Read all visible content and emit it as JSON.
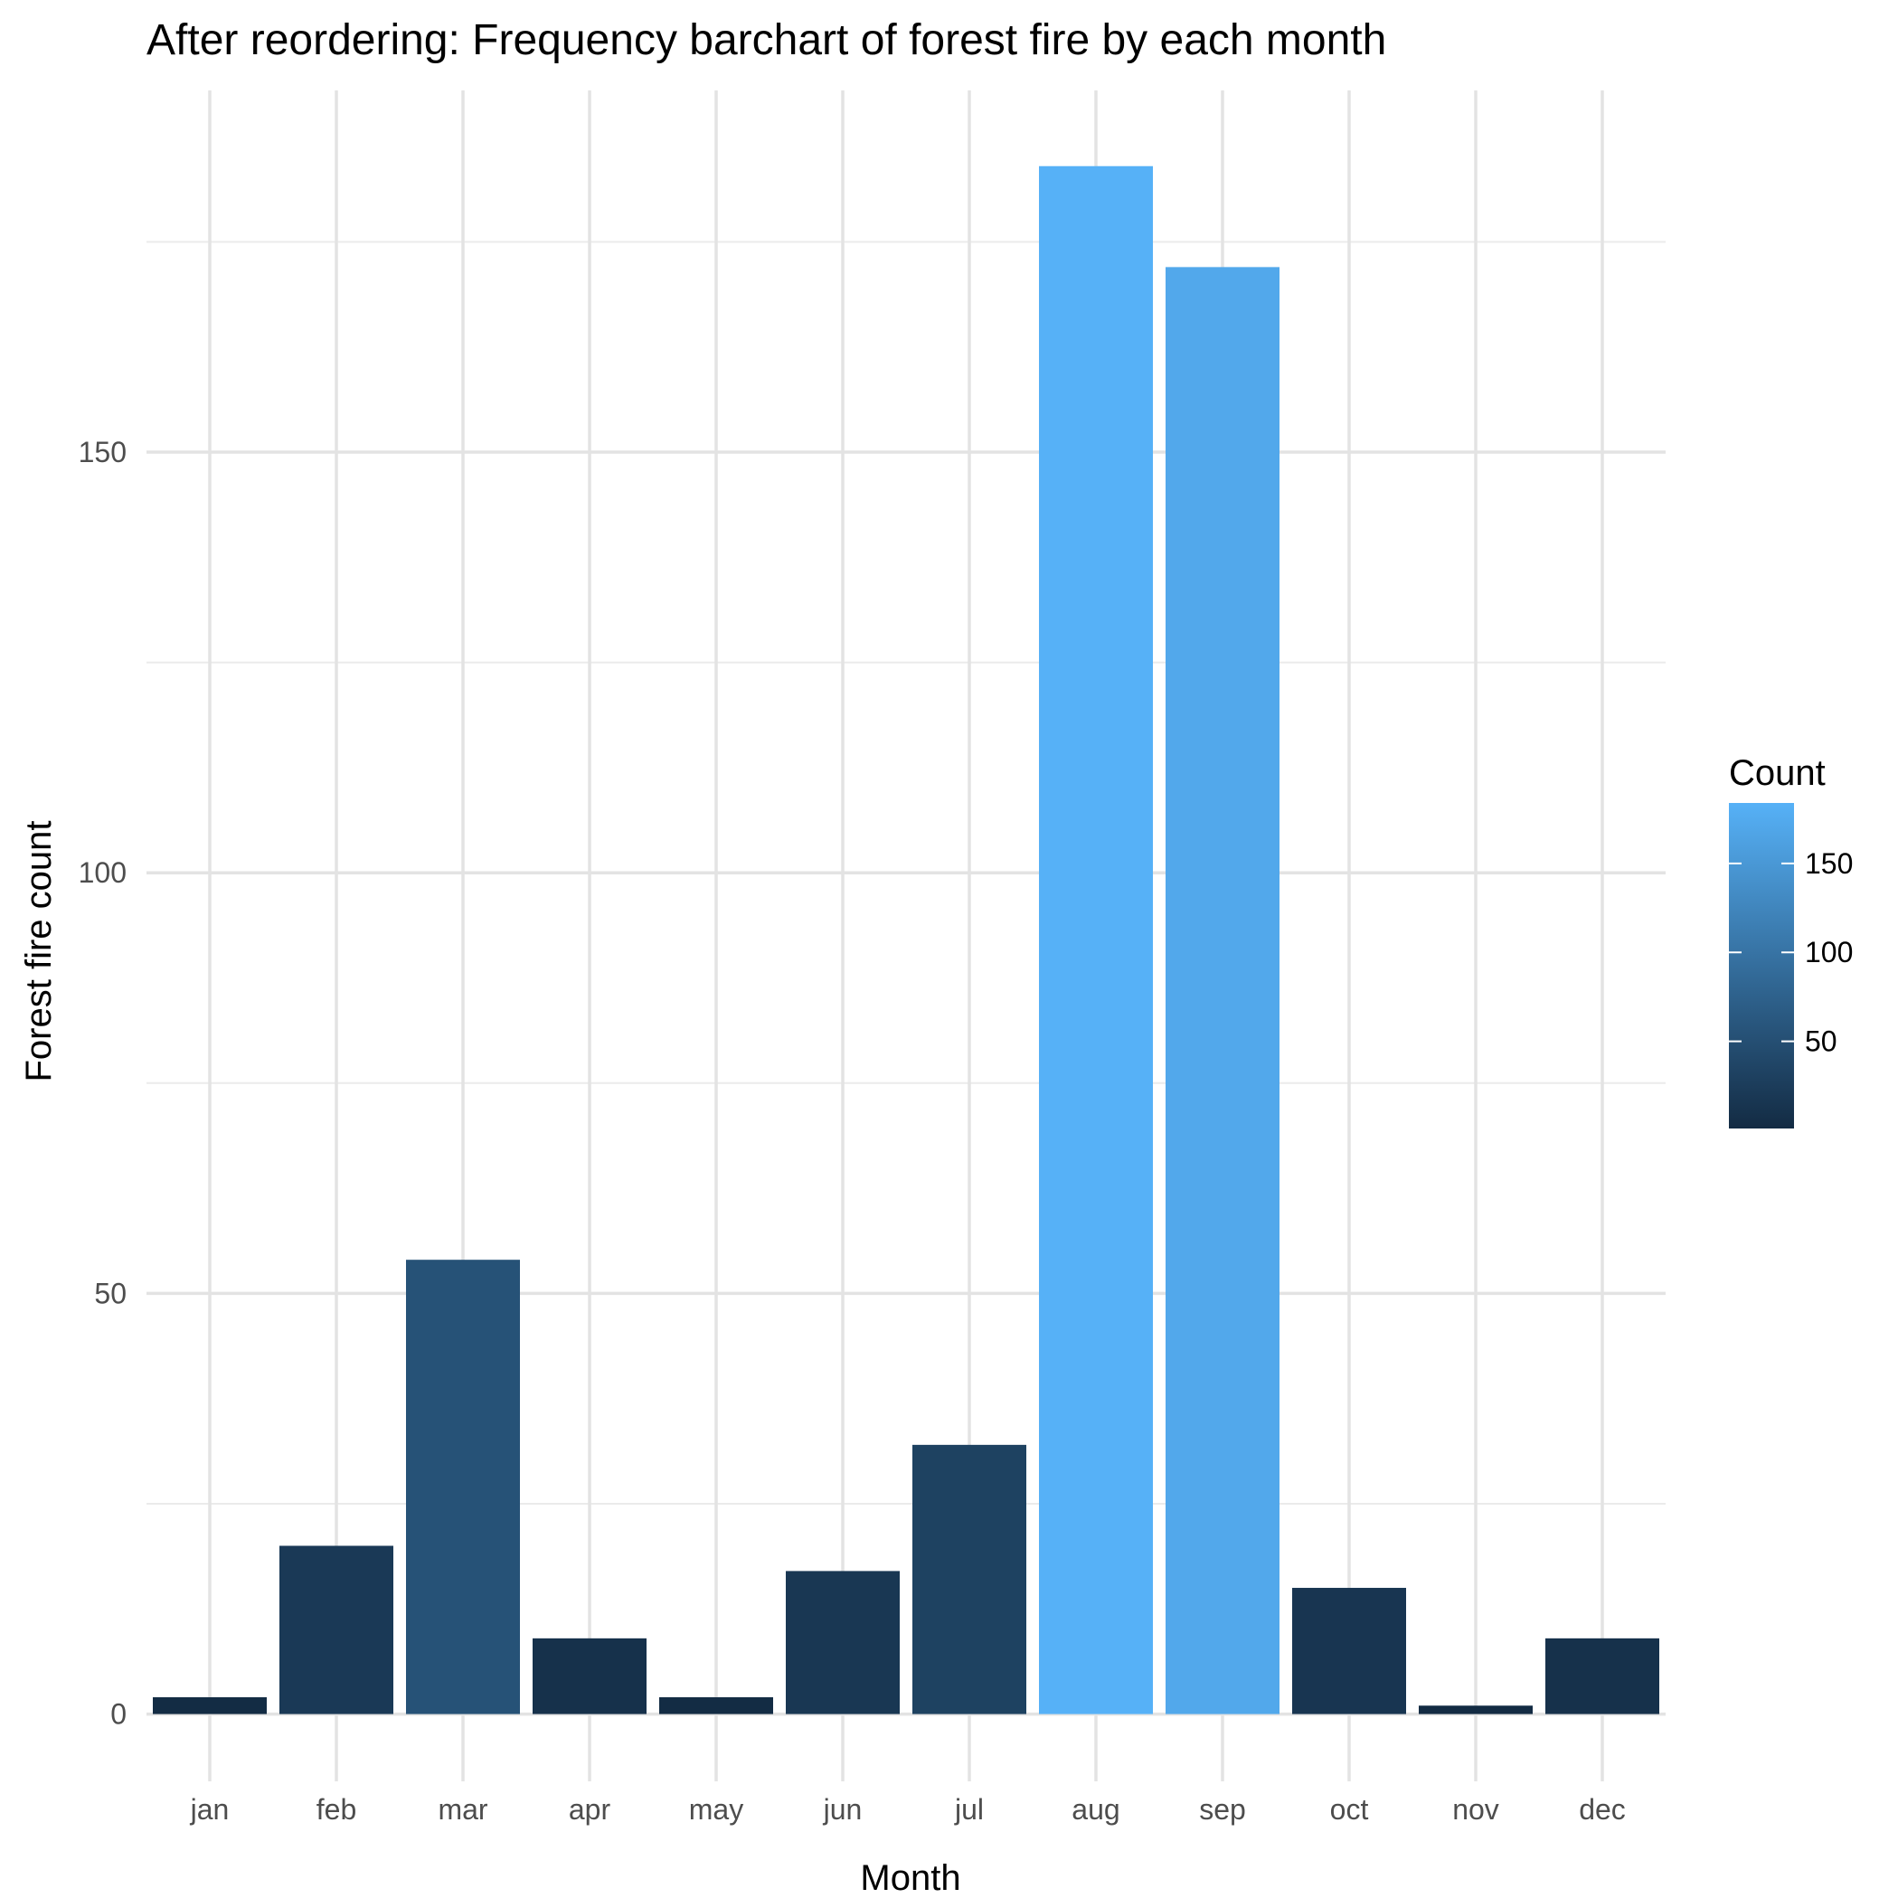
{
  "chart_data": {
    "type": "bar",
    "title": "After reordering: Frequency barchart of forest fire by each month",
    "xlabel": "Month",
    "ylabel": "Forest fire count",
    "categories": [
      "jan",
      "feb",
      "mar",
      "apr",
      "may",
      "jun",
      "jul",
      "aug",
      "sep",
      "oct",
      "nov",
      "dec"
    ],
    "values": [
      2,
      20,
      54,
      9,
      2,
      17,
      32,
      184,
      172,
      15,
      1,
      9
    ],
    "ylim": [
      -8,
      193
    ],
    "yticks": [
      0,
      50,
      100,
      150
    ],
    "grid": true,
    "legend": {
      "title": "Count",
      "placement": "right",
      "ticks": [
        50,
        100,
        150
      ],
      "range": [
        1,
        184
      ],
      "color_low": "#132B43",
      "color_high": "#56B1F7"
    }
  }
}
